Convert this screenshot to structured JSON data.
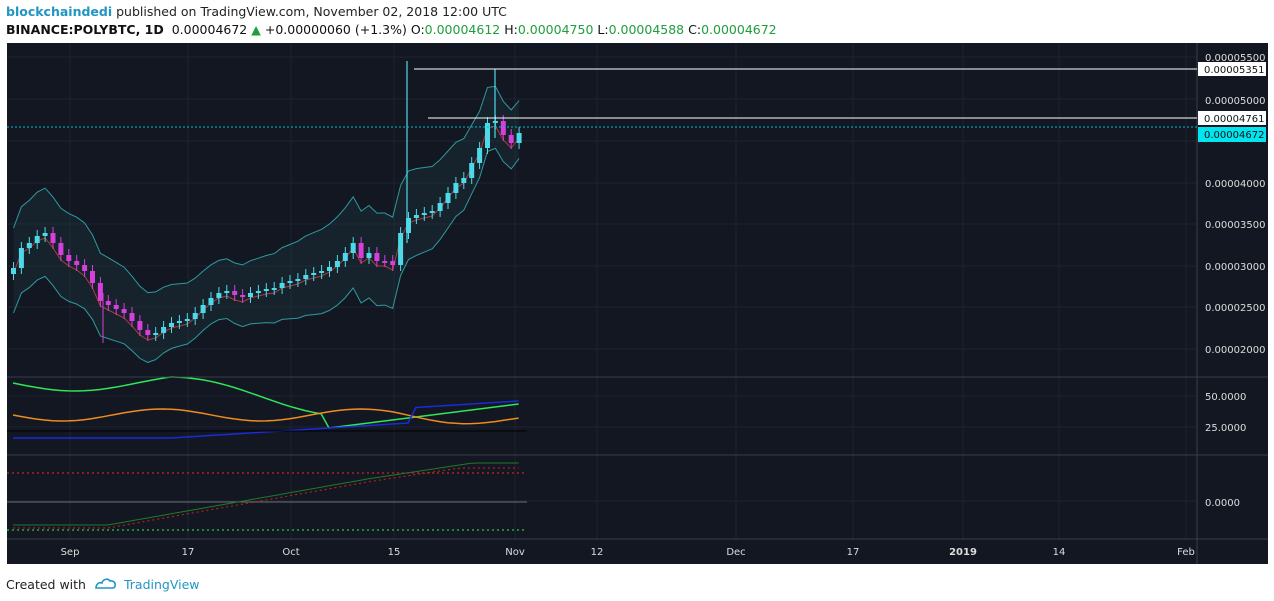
{
  "header": {
    "username": "blockchaindedi",
    "published_text": "published on TradingView.com, November 02, 2018 12:00 UTC",
    "symbol": "BINANCE:POLYBTC, 1D",
    "last_price": "0.00004672",
    "change_arrow": "▲",
    "change": "+0.00000060 (+1.3%)",
    "open_label": "O:",
    "open": "0.00004612",
    "high_label": "H:",
    "high": "0.00004750",
    "low_label": "L:",
    "low": "0.00004588",
    "close_label": "C:",
    "close": "0.00004672"
  },
  "price_axis": {
    "ticks": [
      "0.00005500",
      "0.00005000",
      "0.00004000",
      "0.00003500",
      "0.00003000",
      "0.00002500",
      "0.00002000"
    ],
    "label_high_line": "0.00005351",
    "label_mid_line": "0.00004761",
    "label_current": "0.00004672"
  },
  "indicator1_axis": {
    "ticks": [
      "50.0000",
      "25.0000"
    ]
  },
  "indicator2_axis": {
    "ticks": [
      "0.0000"
    ]
  },
  "time_axis": {
    "labels": [
      "Sep",
      "17",
      "Oct",
      "15",
      "Nov",
      "12",
      "Dec",
      "17",
      "2019",
      "14",
      "Feb"
    ]
  },
  "footer": {
    "created_with": "Created with",
    "brand": "TradingView"
  },
  "colors": {
    "background": "#131722",
    "bull": "#4dd9e8",
    "bear": "#d63fd9",
    "current_price": "#00bcd4",
    "bollinger": "#2e9aa0",
    "basis": "#b03a3a"
  }
}
